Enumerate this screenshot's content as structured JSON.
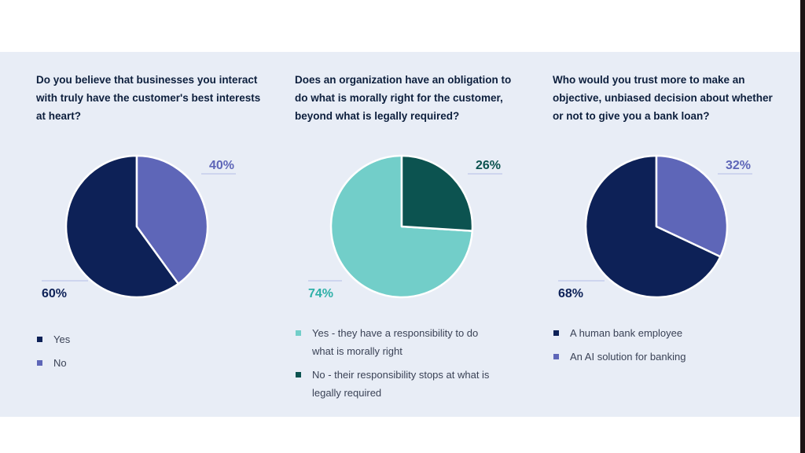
{
  "chart_data": [
    {
      "type": "pie",
      "title": "Do you believe that businesses you interact with truly have the customer's best interests at heart?",
      "slices": [
        {
          "label": "Yes",
          "value": 60,
          "display": "60%",
          "color": "#0d2157"
        },
        {
          "label": "No",
          "value": 40,
          "display": "40%",
          "color": "#5e66b8"
        }
      ],
      "legend_position": "bottom-left"
    },
    {
      "type": "pie",
      "title": "Does an organization have an obligation to do what is morally right for the customer, beyond what is legally required?",
      "slices": [
        {
          "label": "Yes - they have a responsibility to do what is morally right",
          "value": 74,
          "display": "74%",
          "color": "#72cec9"
        },
        {
          "label": "No - their responsibility stops at what is legally required",
          "value": 26,
          "display": "26%",
          "color": "#0c5350"
        }
      ],
      "legend_position": "bottom-left"
    },
    {
      "type": "pie",
      "title": "Who would you trust more to make an objective, unbiased decision about whether or not to give you a bank loan?",
      "slices": [
        {
          "label": "A human bank employee",
          "value": 68,
          "display": "68%",
          "color": "#0d2157"
        },
        {
          "label": "An AI solution for banking",
          "value": 32,
          "display": "32%",
          "color": "#5e66b8"
        }
      ],
      "legend_position": "bottom-left"
    }
  ],
  "colors": {
    "panel_bg": "#e8edf6",
    "question_text": "#0d1f3d",
    "legend_text": "#3a4256",
    "leader_line": "#b5bde6",
    "slice_border": "#ffffff"
  }
}
